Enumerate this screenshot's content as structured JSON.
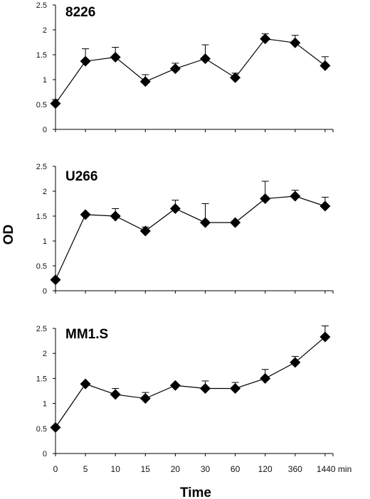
{
  "chart_data": [
    {
      "type": "line",
      "title": "8226",
      "categories": [
        "0",
        "5",
        "10",
        "15",
        "20",
        "30",
        "60",
        "120",
        "360",
        "1440 min"
      ],
      "values": [
        0.52,
        1.37,
        1.45,
        0.96,
        1.22,
        1.42,
        1.04,
        1.82,
        1.74,
        1.28
      ],
      "errors": [
        0.08,
        0.25,
        0.2,
        0.14,
        0.11,
        0.28,
        0.09,
        0.1,
        0.15,
        0.18
      ],
      "ylim": [
        0,
        2.5
      ],
      "yticks": [
        "0",
        "0.5",
        "1",
        "1.5",
        "2",
        "2.5"
      ],
      "color": "#000000"
    },
    {
      "type": "line",
      "title": "U266",
      "categories": [
        "0",
        "5",
        "10",
        "15",
        "20",
        "30",
        "60",
        "120",
        "360",
        "1440 min"
      ],
      "values": [
        0.22,
        1.53,
        1.5,
        1.2,
        1.65,
        1.37,
        1.37,
        1.85,
        1.9,
        1.7
      ],
      "errors": [
        0.0,
        0.0,
        0.15,
        0.08,
        0.17,
        0.38,
        0.0,
        0.35,
        0.12,
        0.18
      ],
      "ylim": [
        0,
        2.5
      ],
      "yticks": [
        "0",
        "0.5",
        "1",
        "1.5",
        "2",
        "2.5"
      ],
      "color": "#000000"
    },
    {
      "type": "line",
      "title": "MM1.S",
      "categories": [
        "0",
        "5",
        "10",
        "15",
        "20",
        "30",
        "60",
        "120",
        "360",
        "1440 min"
      ],
      "values": [
        0.52,
        1.39,
        1.18,
        1.1,
        1.36,
        1.3,
        1.3,
        1.5,
        1.82,
        2.33
      ],
      "errors": [
        0.0,
        0.0,
        0.12,
        0.12,
        0.0,
        0.15,
        0.12,
        0.18,
        0.12,
        0.22
      ],
      "ylim": [
        0,
        2.5
      ],
      "yticks": [
        "0",
        "0.5",
        "1",
        "1.5",
        "2",
        "2.5"
      ],
      "color": "#000000"
    }
  ],
  "shared": {
    "ylabel": "OD",
    "xlabel": "Time",
    "xticks": [
      "0",
      "5",
      "10",
      "15",
      "20",
      "30",
      "60",
      "120",
      "360",
      "1440 min"
    ]
  }
}
